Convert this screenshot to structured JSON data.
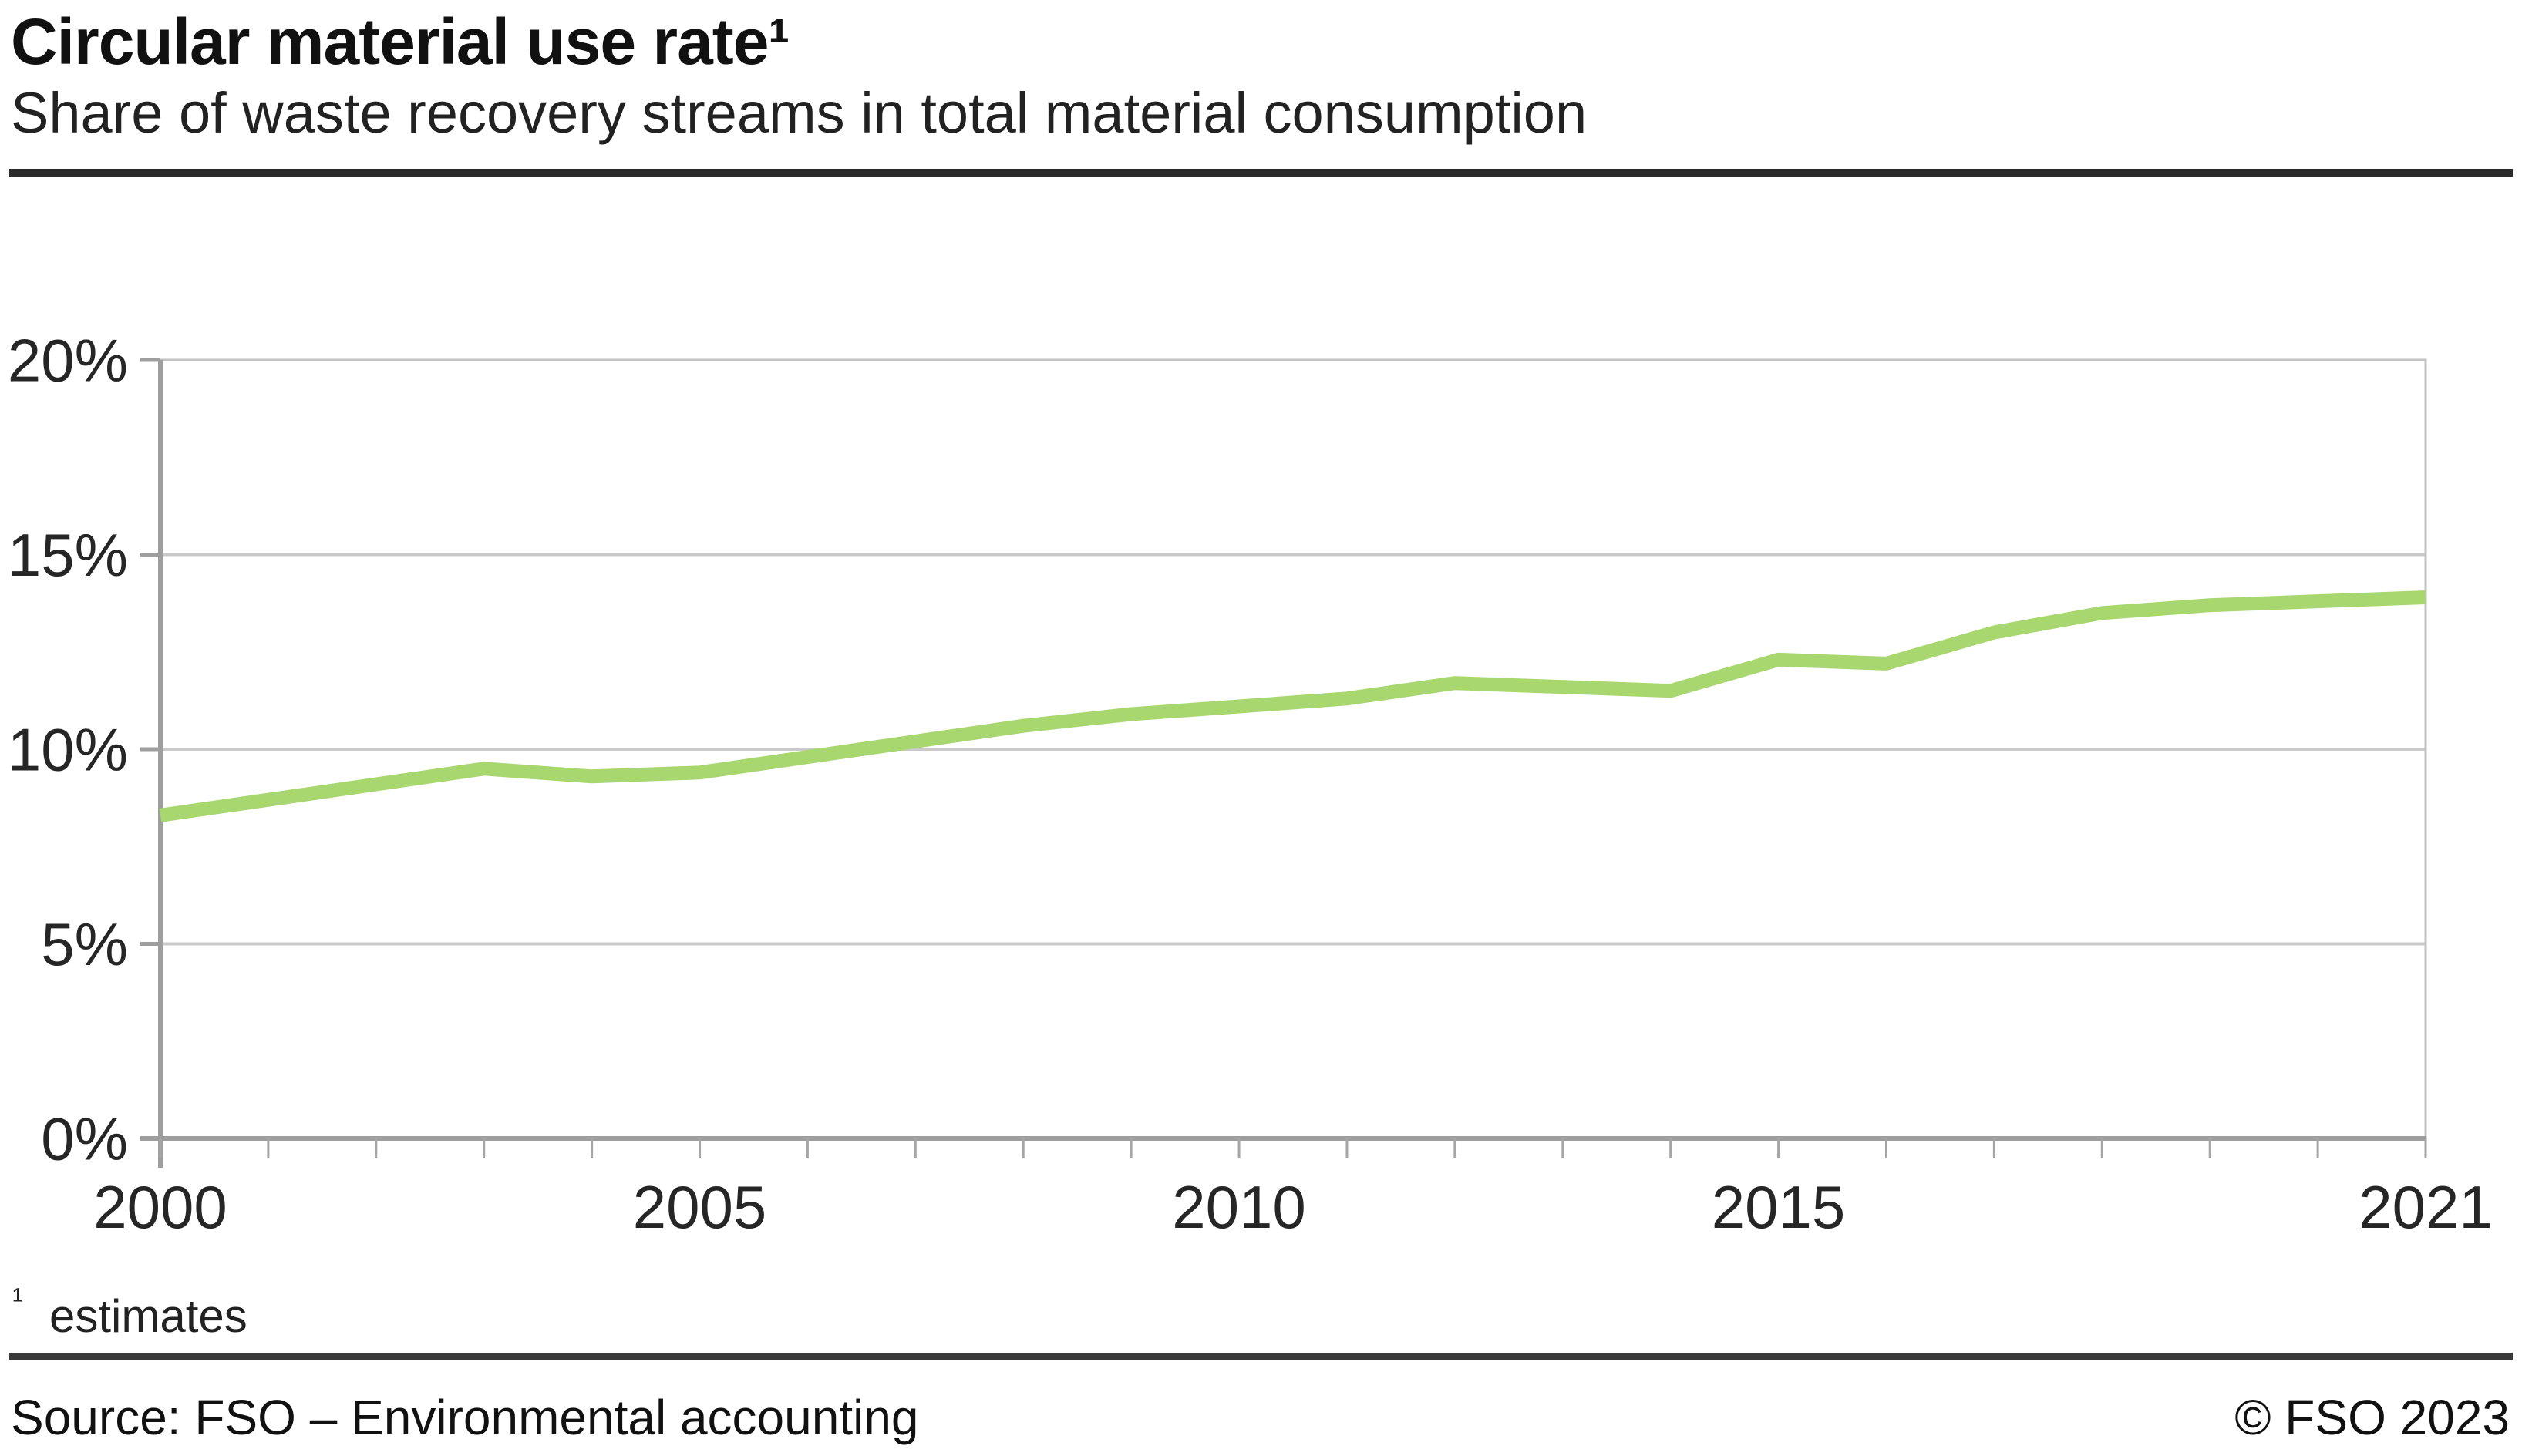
{
  "header": {
    "title": "Circular material use rate¹",
    "subtitle": "Share of waste recovery streams in total material consumption"
  },
  "footnote": {
    "marker": "¹",
    "text": "estimates"
  },
  "footer": {
    "source": "Source: FSO – Environmental accounting",
    "copyright": "© FSO 2023"
  },
  "colors": {
    "line": "#a8d76f",
    "grid": "#cacaca",
    "plot_border": "#c2c2c2",
    "axis": "#9e9e9e",
    "tick": "#a6a6a6",
    "label_text": "#262626",
    "rule_top": "#2b2b2b",
    "rule_bottom": "#3a3a3a"
  },
  "chart_data": {
    "type": "line",
    "title": "Circular material use rate¹",
    "subtitle": "Share of waste recovery streams in total material consumption",
    "x": [
      2000,
      2001,
      2002,
      2003,
      2004,
      2005,
      2006,
      2007,
      2008,
      2009,
      2010,
      2011,
      2012,
      2013,
      2014,
      2015,
      2016,
      2017,
      2018,
      2019,
      2020,
      2021
    ],
    "series": [
      {
        "name": "Circular material use rate",
        "values": [
          8.3,
          8.7,
          9.1,
          9.5,
          9.3,
          9.4,
          9.8,
          10.2,
          10.6,
          10.9,
          11.1,
          11.3,
          11.7,
          11.6,
          11.5,
          12.3,
          12.2,
          13.0,
          13.5,
          13.7,
          13.8,
          13.9
        ]
      }
    ],
    "xlabel": "",
    "ylabel": "",
    "xlim": [
      2000,
      2021
    ],
    "ylim": [
      0,
      20
    ],
    "yticks": [
      0,
      5,
      10,
      15,
      20
    ],
    "ytick_labels": [
      "0%",
      "5%",
      "10%",
      "15%",
      "20%"
    ],
    "xticks_minor_every_year": true,
    "xticks_labeled": [
      2000,
      2005,
      2010,
      2015,
      2021
    ],
    "xtick_labels": [
      "2000",
      "2005",
      "2010",
      "2015",
      "2021"
    ],
    "grid": "horizontal gridlines on",
    "legend": "none"
  }
}
